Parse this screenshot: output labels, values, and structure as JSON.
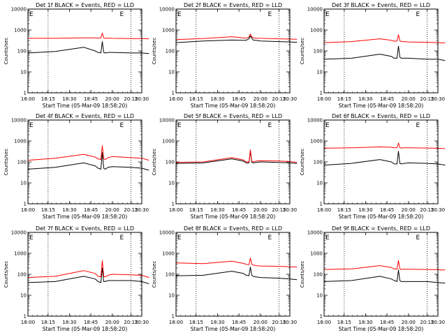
{
  "chart_data": [
    {
      "type": "line",
      "title": "Det 1f BLACK = Events, RED = LLD",
      "xlabel": "Start Time (05-Mar-09 18:58:20)",
      "ylabel": "Counts/sec",
      "yscale": "log",
      "ylim": [
        1,
        10000
      ],
      "xlim": [
        "18:00",
        "20:40"
      ],
      "x_ticks": [
        "18:00",
        "18:15",
        "18:30",
        "18:45",
        "20:00",
        "20:15",
        "20:30"
      ],
      "y_ticks": [
        "1",
        "10",
        "100",
        "1000",
        "10000"
      ],
      "marker_labels": [
        "E",
        "E"
      ],
      "series": [
        {
          "color": "#000000",
          "x": [
            "18:00",
            "18:20",
            "18:40",
            "19:00",
            "19:10",
            "19:20",
            "19:25",
            "19:30",
            "19:35",
            "19:45",
            "20:00",
            "20:15",
            "20:30",
            "20:40"
          ],
          "values": [
            80,
            95,
            150,
            100,
            85,
            80,
            280,
            85,
            80,
            85,
            85,
            80,
            80,
            75
          ]
        },
        {
          "color": "#ff0000",
          "x": [
            "18:00",
            "18:20",
            "18:40",
            "19:00",
            "19:10",
            "19:20",
            "19:25",
            "19:30",
            "19:35",
            "19:45",
            "20:00",
            "20:15",
            "20:30",
            "20:40"
          ],
          "values": [
            400,
            400,
            420,
            420,
            410,
            420,
            700,
            420,
            400,
            410,
            400,
            390,
            390,
            380
          ]
        }
      ]
    },
    {
      "type": "line",
      "title": "Det 2f BLACK = Events, RED = LLD",
      "xlabel": "Start Time (05-Mar-09 18:58:20)",
      "ylabel": "Counts/sec",
      "yscale": "log",
      "ylim": [
        1,
        10000
      ],
      "xlim": [
        "18:00",
        "20:40"
      ],
      "x_ticks": [
        "18:00",
        "18:15",
        "18:30",
        "18:45",
        "20:00",
        "20:15",
        "20:30"
      ],
      "y_ticks": [
        "1",
        "10",
        "100",
        "1000",
        "10000"
      ],
      "marker_labels": [
        "E",
        "E"
      ],
      "series": [
        {
          "color": "#000000",
          "x": [
            "18:00",
            "18:20",
            "18:40",
            "19:00",
            "19:10",
            "19:20",
            "19:25",
            "19:30",
            "19:35",
            "19:45",
            "20:00",
            "20:15",
            "20:30",
            "20:40"
          ],
          "values": [
            250,
            300,
            330,
            320,
            320,
            380,
            520,
            400,
            330,
            320,
            300,
            280,
            270,
            260
          ]
        },
        {
          "color": "#ff0000",
          "x": [
            "18:00",
            "18:20",
            "18:40",
            "19:00",
            "19:10",
            "19:20",
            "19:25",
            "19:30",
            "19:35",
            "19:45",
            "20:00",
            "20:15",
            "20:30",
            "20:40"
          ],
          "values": [
            350,
            390,
            480,
            420,
            400,
            460,
            650,
            470,
            420,
            410,
            400,
            380,
            370,
            360
          ]
        }
      ]
    },
    {
      "type": "line",
      "title": "Det 3f BLACK = Events, RED = LLD",
      "xlabel": "Start Time (05-Mar-09 18:58:20)",
      "ylabel": "Counts/sec",
      "yscale": "log",
      "ylim": [
        1,
        10000
      ],
      "xlim": [
        "18:00",
        "20:40"
      ],
      "x_ticks": [
        "18:00",
        "18:15",
        "18:30",
        "18:45",
        "20:00",
        "20:15",
        "20:30"
      ],
      "y_ticks": [
        "1",
        "10",
        "100",
        "1000",
        "10000"
      ],
      "marker_labels": [
        "E",
        "E"
      ],
      "series": [
        {
          "color": "#000000",
          "x": [
            "18:00",
            "18:20",
            "18:40",
            "19:00",
            "19:10",
            "19:20",
            "19:25",
            "19:30",
            "19:35",
            "19:45",
            "20:00",
            "20:15",
            "20:30",
            "20:40"
          ],
          "values": [
            40,
            45,
            70,
            55,
            45,
            45,
            170,
            50,
            45,
            45,
            45,
            40,
            40,
            35
          ]
        },
        {
          "color": "#ff0000",
          "x": [
            "18:00",
            "18:20",
            "18:40",
            "19:00",
            "19:10",
            "19:20",
            "19:25",
            "19:30",
            "19:35",
            "19:45",
            "20:00",
            "20:15",
            "20:30",
            "20:40"
          ],
          "values": [
            250,
            280,
            380,
            320,
            290,
            300,
            600,
            310,
            280,
            280,
            270,
            260,
            250,
            240
          ]
        }
      ]
    },
    {
      "type": "line",
      "title": "Det 4f BLACK = Events, RED = LLD",
      "xlabel": "Start Time (05-Mar-09 18:58:20)",
      "ylabel": "Counts/sec",
      "yscale": "log",
      "ylim": [
        1,
        10000
      ],
      "xlim": [
        "18:00",
        "20:40"
      ],
      "x_ticks": [
        "18:00",
        "18:15",
        "18:30",
        "18:45",
        "20:00",
        "20:15",
        "20:30"
      ],
      "y_ticks": [
        "1",
        "10",
        "100",
        "1000",
        "10000"
      ],
      "marker_labels": [
        "E",
        "E"
      ],
      "series": [
        {
          "color": "#000000",
          "x": [
            "18:00",
            "18:20",
            "18:40",
            "19:00",
            "19:10",
            "19:20",
            "19:25",
            "19:30",
            "19:35",
            "19:45",
            "20:00",
            "20:15",
            "20:30",
            "20:40"
          ],
          "values": [
            45,
            55,
            90,
            65,
            50,
            45,
            280,
            50,
            45,
            55,
            60,
            55,
            50,
            40
          ]
        },
        {
          "color": "#ff0000",
          "x": [
            "18:00",
            "18:20",
            "18:40",
            "19:00",
            "19:10",
            "19:20",
            "19:25",
            "19:30",
            "19:35",
            "19:45",
            "20:00",
            "20:15",
            "20:30",
            "20:40"
          ],
          "values": [
            120,
            150,
            230,
            170,
            140,
            130,
            600,
            140,
            130,
            160,
            180,
            160,
            150,
            120
          ]
        }
      ]
    },
    {
      "type": "line",
      "title": "Det 5f BLACK = Events, RED = LLD",
      "xlabel": "Start Time (05-Mar-09 18:58:20)",
      "ylabel": "Counts/sec",
      "yscale": "log",
      "ylim": [
        1,
        10000
      ],
      "xlim": [
        "18:00",
        "20:40"
      ],
      "x_ticks": [
        "18:00",
        "18:15",
        "18:30",
        "18:45",
        "20:00",
        "20:15",
        "20:30"
      ],
      "y_ticks": [
        "1",
        "10",
        "100",
        "1000",
        "10000"
      ],
      "marker_labels": [
        "E",
        "E"
      ],
      "series": [
        {
          "color": "#000000",
          "x": [
            "18:00",
            "18:20",
            "18:40",
            "19:00",
            "19:10",
            "19:20",
            "19:25",
            "19:30",
            "19:35",
            "19:45",
            "20:00",
            "20:15",
            "20:30",
            "20:40"
          ],
          "values": [
            85,
            90,
            140,
            110,
            90,
            90,
            320,
            95,
            90,
            95,
            100,
            95,
            90,
            85
          ]
        },
        {
          "color": "#ff0000",
          "x": [
            "18:00",
            "18:20",
            "18:40",
            "19:00",
            "19:10",
            "19:20",
            "19:25",
            "19:30",
            "19:35",
            "19:45",
            "20:00",
            "20:15",
            "20:30",
            "20:40"
          ],
          "values": [
            95,
            100,
            160,
            125,
            100,
            100,
            380,
            110,
            100,
            110,
            115,
            110,
            105,
            95
          ]
        }
      ]
    },
    {
      "type": "line",
      "title": "Det 6f BLACK = Events, RED = LLD",
      "xlabel": "Start Time (05-Mar-09 18:58:20)",
      "ylabel": "Counts/sec",
      "yscale": "log",
      "ylim": [
        1,
        10000
      ],
      "xlim": [
        "18:00",
        "20:40"
      ],
      "x_ticks": [
        "18:00",
        "18:15",
        "18:30",
        "18:45",
        "20:00",
        "20:15",
        "20:30"
      ],
      "y_ticks": [
        "1",
        "10",
        "100",
        "1000",
        "10000"
      ],
      "marker_labels": [
        "E",
        "E"
      ],
      "series": [
        {
          "color": "#000000",
          "x": [
            "18:00",
            "18:20",
            "18:40",
            "19:00",
            "19:10",
            "19:20",
            "19:25",
            "19:30",
            "19:35",
            "19:45",
            "20:00",
            "20:15",
            "20:30",
            "20:40"
          ],
          "values": [
            70,
            85,
            130,
            100,
            80,
            80,
            320,
            85,
            80,
            85,
            90,
            85,
            80,
            70
          ]
        },
        {
          "color": "#ff0000",
          "x": [
            "18:00",
            "18:20",
            "18:40",
            "19:00",
            "19:10",
            "19:20",
            "19:25",
            "19:30",
            "19:35",
            "19:45",
            "20:00",
            "20:15",
            "20:30",
            "20:40"
          ],
          "values": [
            450,
            470,
            520,
            500,
            470,
            480,
            800,
            480,
            460,
            470,
            470,
            460,
            450,
            430
          ]
        }
      ]
    },
    {
      "type": "line",
      "title": "Det 7f BLACK = Events, RED = LLD",
      "xlabel": "Start Time (05-Mar-09 18:58:20)",
      "ylabel": "Counts/sec",
      "yscale": "log",
      "ylim": [
        1,
        10000
      ],
      "xlim": [
        "18:00",
        "20:40"
      ],
      "x_ticks": [
        "18:00",
        "18:15",
        "18:30",
        "18:45",
        "20:00",
        "20:15",
        "20:30"
      ],
      "y_ticks": [
        "1",
        "10",
        "100",
        "1000",
        "10000"
      ],
      "marker_labels": [
        "E",
        "E"
      ],
      "series": [
        {
          "color": "#000000",
          "x": [
            "18:00",
            "18:20",
            "18:40",
            "19:00",
            "19:10",
            "19:20",
            "19:25",
            "19:30",
            "19:35",
            "19:45",
            "20:00",
            "20:15",
            "20:30",
            "20:40"
          ],
          "values": [
            40,
            45,
            80,
            60,
            45,
            40,
            200,
            45,
            45,
            50,
            50,
            50,
            45,
            35
          ]
        },
        {
          "color": "#ff0000",
          "x": [
            "18:00",
            "18:20",
            "18:40",
            "19:00",
            "19:10",
            "19:20",
            "19:25",
            "19:30",
            "19:35",
            "19:45",
            "20:00",
            "20:15",
            "20:30",
            "20:40"
          ],
          "values": [
            70,
            80,
            150,
            110,
            80,
            75,
            450,
            80,
            75,
            90,
            100,
            95,
            90,
            70
          ]
        }
      ]
    },
    {
      "type": "line",
      "title": "Det 8f BLACK = Events, RED = LLD",
      "xlabel": "Start Time (05-Mar-09 18:58:20)",
      "ylabel": "Counts/sec",
      "yscale": "log",
      "ylim": [
        1,
        10000
      ],
      "xlim": [
        "18:00",
        "20:40"
      ],
      "x_ticks": [
        "18:00",
        "18:15",
        "18:30",
        "18:45",
        "20:00",
        "20:15",
        "20:30"
      ],
      "y_ticks": [
        "1",
        "10",
        "100",
        "1000",
        "10000"
      ],
      "marker_labels": [
        "E",
        "E"
      ],
      "series": [
        {
          "color": "#000000",
          "x": [
            "18:00",
            "18:20",
            "18:40",
            "19:00",
            "19:10",
            "19:20",
            "19:25",
            "19:30",
            "19:35",
            "19:45",
            "20:00",
            "20:15",
            "20:30",
            "20:40"
          ],
          "values": [
            85,
            90,
            140,
            110,
            90,
            85,
            220,
            90,
            80,
            75,
            70,
            65,
            60,
            55
          ]
        },
        {
          "color": "#ff0000",
          "x": [
            "18:00",
            "18:20",
            "18:40",
            "19:00",
            "19:10",
            "19:20",
            "19:25",
            "19:30",
            "19:35",
            "19:45",
            "20:00",
            "20:15",
            "20:30",
            "20:40"
          ],
          "values": [
            350,
            320,
            420,
            330,
            300,
            290,
            600,
            300,
            280,
            260,
            250,
            240,
            230,
            220
          ]
        }
      ]
    },
    {
      "type": "line",
      "title": "Det 9f BLACK = Events, RED = LLD",
      "xlabel": "Start Time (05-Mar-09 18:58:20)",
      "ylabel": "Counts/sec",
      "yscale": "log",
      "ylim": [
        1,
        10000
      ],
      "xlim": [
        "18:00",
        "20:40"
      ],
      "x_ticks": [
        "18:00",
        "18:15",
        "18:30",
        "18:45",
        "20:00",
        "20:15",
        "20:30"
      ],
      "y_ticks": [
        "1",
        "10",
        "100",
        "1000",
        "10000"
      ],
      "marker_labels": [
        "E",
        "E"
      ],
      "series": [
        {
          "color": "#000000",
          "x": [
            "18:00",
            "18:20",
            "18:40",
            "19:00",
            "19:10",
            "19:20",
            "19:25",
            "19:30",
            "19:35",
            "19:45",
            "20:00",
            "20:15",
            "20:30",
            "20:40"
          ],
          "values": [
            45,
            50,
            80,
            60,
            50,
            45,
            160,
            50,
            45,
            45,
            45,
            45,
            40,
            38
          ]
        },
        {
          "color": "#ff0000",
          "x": [
            "18:00",
            "18:20",
            "18:40",
            "19:00",
            "19:10",
            "19:20",
            "19:25",
            "19:30",
            "19:35",
            "19:45",
            "20:00",
            "20:15",
            "20:30",
            "20:40"
          ],
          "values": [
            170,
            180,
            260,
            210,
            180,
            175,
            450,
            180,
            170,
            175,
            175,
            170,
            165,
            160
          ]
        }
      ]
    }
  ]
}
